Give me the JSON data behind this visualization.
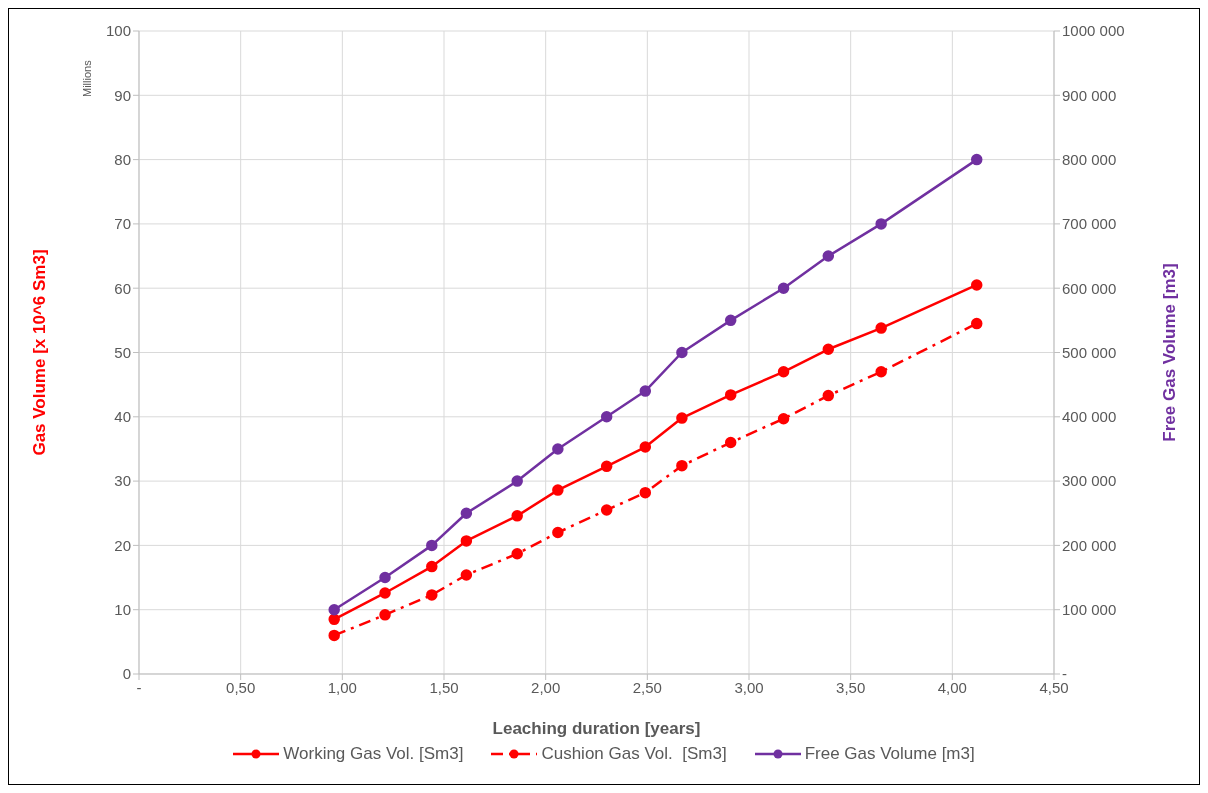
{
  "chart_data": {
    "type": "line",
    "xlabel": "Leaching duration [years]",
    "ylabel": "Gas Volume [x 10^6 Sm3]",
    "y2label": "Free Gas Volume [m3]",
    "annotations": [
      "Millions"
    ],
    "x": [
      0.96,
      1.21,
      1.44,
      1.61,
      1.86,
      2.06,
      2.3,
      2.49,
      2.67,
      2.91,
      3.17,
      3.39,
      3.65,
      4.12
    ],
    "series": [
      {
        "name": "Working Gas Vol. [Sm3]",
        "color": "#ff0000",
        "line_style": "solid",
        "values": [
          8.5,
          12.6,
          16.7,
          20.7,
          24.6,
          28.6,
          32.3,
          35.3,
          39.8,
          43.4,
          47,
          50.5,
          53.8,
          60.5
        ]
      },
      {
        "name": "Cushion Gas Vol.  [Sm3]",
        "color": "#ff0000",
        "line_style": "dashed",
        "values": [
          6,
          9.2,
          12.3,
          15.4,
          18.7,
          22,
          25.5,
          28.2,
          32.4,
          36,
          39.7,
          43.3,
          47,
          54.5
        ]
      },
      {
        "name": "Free Gas Volume [m3]",
        "color": "#7030a0",
        "axis": "y2",
        "line_style": "solid",
        "values": [
          100000,
          150000,
          200000,
          250000,
          300000,
          350000,
          400000,
          440000,
          500000,
          550000,
          600000,
          650000,
          700000,
          800000
        ]
      }
    ],
    "xlim": [
      0,
      4.5
    ],
    "xticks": [
      {
        "value": 0,
        "label": "-"
      },
      {
        "value": 0.5,
        "label": "0,50"
      },
      {
        "value": 1,
        "label": "1,00"
      },
      {
        "value": 1.5,
        "label": "1,50"
      },
      {
        "value": 2,
        "label": "2,00"
      },
      {
        "value": 2.5,
        "label": "2,50"
      },
      {
        "value": 3,
        "label": "3,00"
      },
      {
        "value": 3.5,
        "label": "3,50"
      },
      {
        "value": 4,
        "label": "4,00"
      },
      {
        "value": 4.5,
        "label": "4,50"
      }
    ],
    "ylim": [
      0,
      100
    ],
    "yticks": [
      0,
      10,
      20,
      30,
      40,
      50,
      60,
      70,
      80,
      90,
      100
    ],
    "y2lim": [
      0,
      1000000
    ],
    "y2ticks": [
      {
        "value": 0,
        "label": "-"
      },
      {
        "value": 100000,
        "label": "100 000"
      },
      {
        "value": 200000,
        "label": "200 000"
      },
      {
        "value": 300000,
        "label": "300 000"
      },
      {
        "value": 400000,
        "label": "400 000"
      },
      {
        "value": 500000,
        "label": "500 000"
      },
      {
        "value": 600000,
        "label": "600 000"
      },
      {
        "value": 700000,
        "label": "700 000"
      },
      {
        "value": 800000,
        "label": "800 000"
      },
      {
        "value": 900000,
        "label": "900 000"
      },
      {
        "value": 1000000,
        "label": "1000 000"
      }
    ],
    "grid": true,
    "legend": "bottom",
    "marker": "circle"
  }
}
